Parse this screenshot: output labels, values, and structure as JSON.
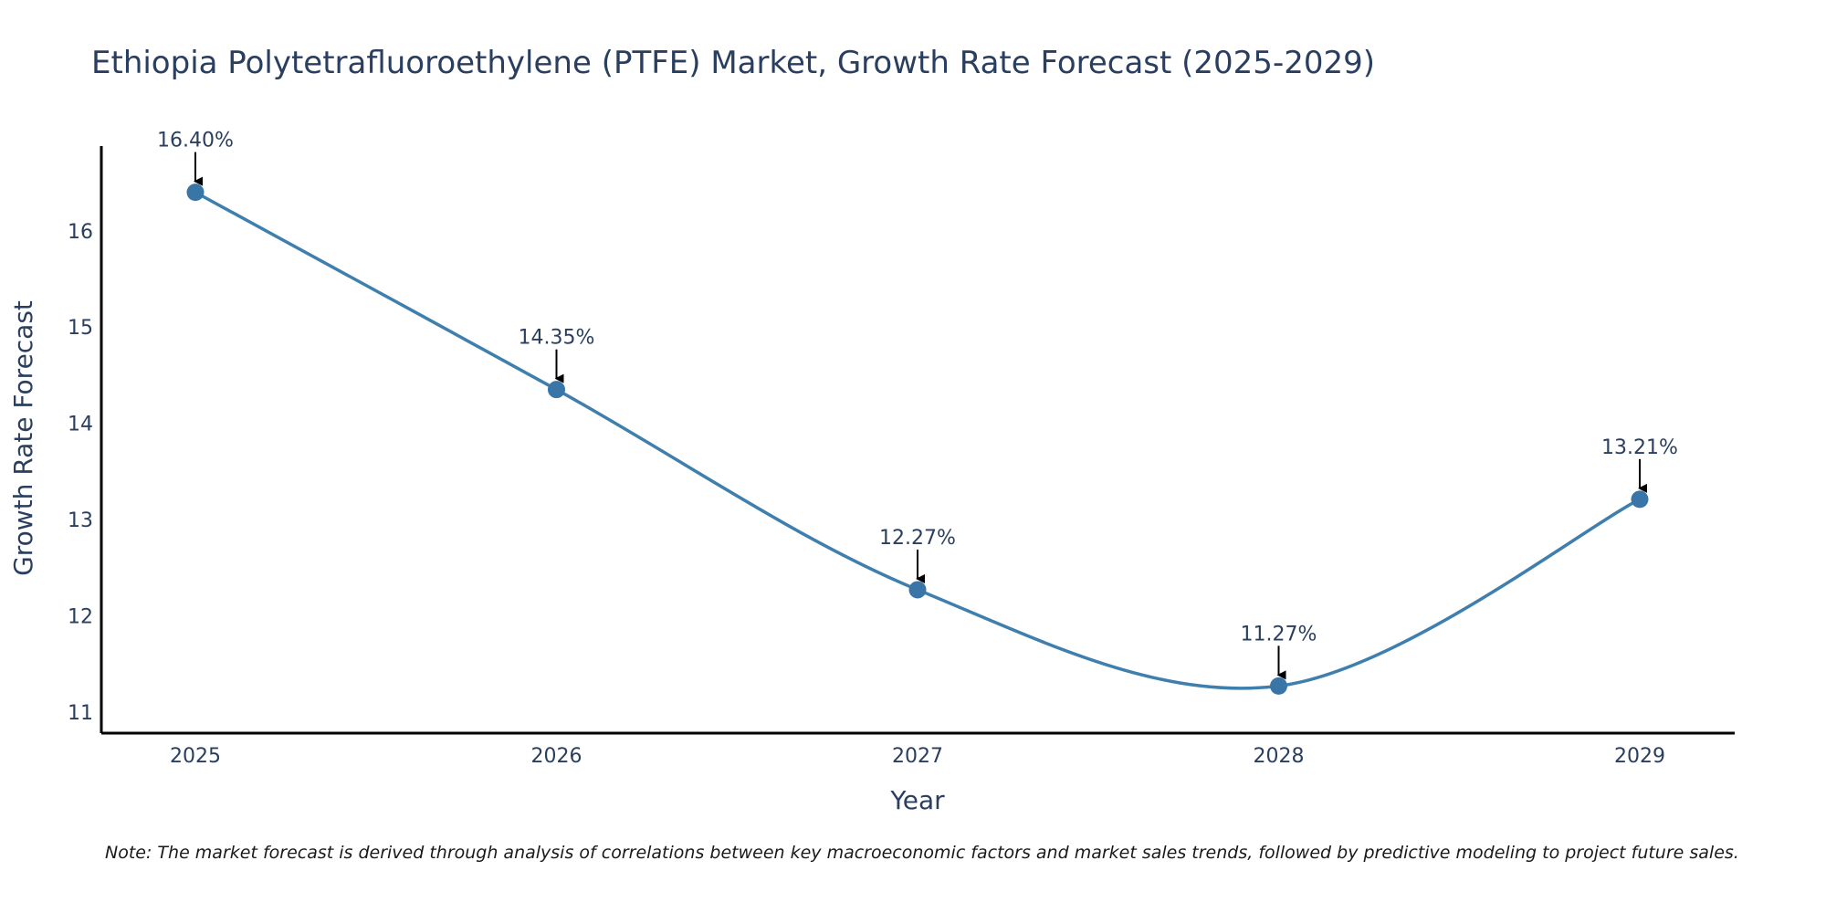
{
  "chart_data": {
    "type": "line",
    "title": "Ethiopia Polytetrafluoroethylene (PTFE) Market, Growth Rate Forecast (2025-2029)",
    "xlabel": "Year",
    "ylabel": "Growth Rate Forecast",
    "categories": [
      "2025",
      "2026",
      "2027",
      "2028",
      "2029"
    ],
    "series": [
      {
        "name": "Growth Rate Forecast",
        "values": [
          16.4,
          14.35,
          12.27,
          11.27,
          13.21
        ],
        "labels": [
          "16.40%",
          "14.35%",
          "12.27%",
          "11.27%",
          "13.21%"
        ]
      }
    ],
    "ylim": [
      10.78,
      16.88
    ],
    "yticks": [
      "11",
      "12",
      "13",
      "14",
      "15",
      "16"
    ],
    "grid": false,
    "line_shape": "spline",
    "colors": {
      "line": "#3f7fad",
      "marker": "#3a75a8",
      "arrow": "#000000",
      "axis": "#000000",
      "text": "#2a3f5f"
    },
    "note": "Note: The market forecast is derived through analysis of correlations between key macroeconomic factors and market sales trends, followed by predictive modeling to project future sales."
  }
}
